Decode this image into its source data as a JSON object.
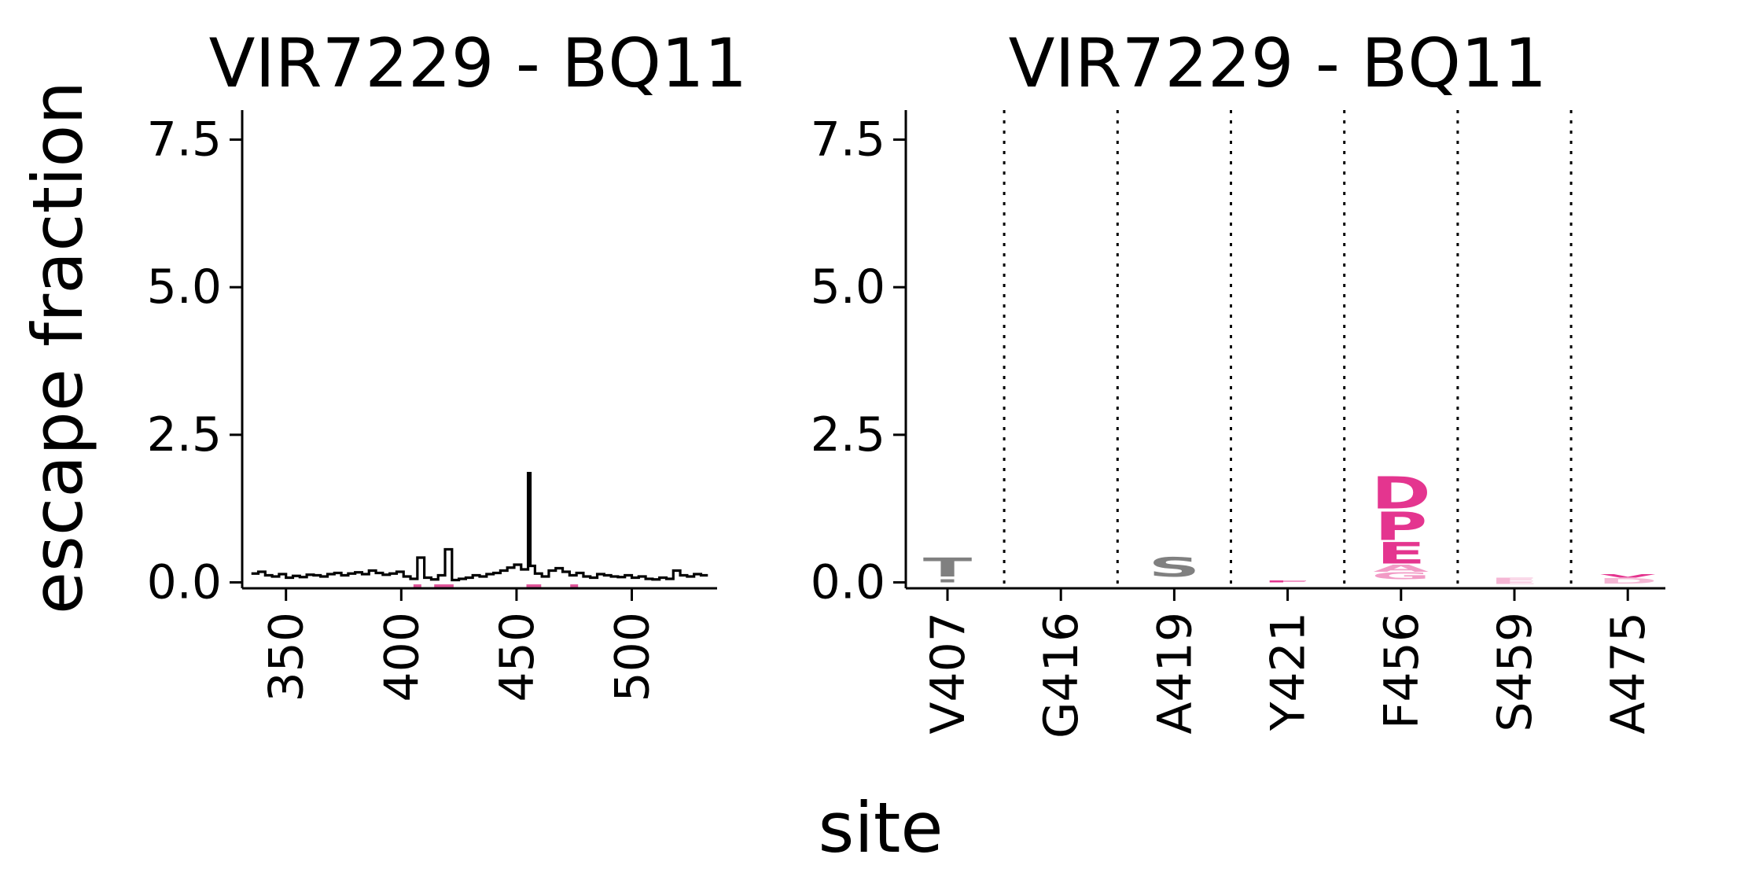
{
  "figure": {
    "ylabel": "escape fraction",
    "xlabel": "site"
  },
  "chart_data": [
    {
      "type": "line",
      "title": "VIR7229 - BQ11",
      "xlabel": "",
      "ylabel": "",
      "xlim": [
        331,
        537
      ],
      "ylim": [
        -0.1,
        8.0
      ],
      "xticks": [
        350,
        400,
        450,
        500
      ],
      "yticks": [
        0.0,
        2.5,
        5.0,
        7.5
      ],
      "ytick_labels": [
        "0.0",
        "2.5",
        "5.0",
        "7.5"
      ],
      "grid": false,
      "series": [
        {
          "type": "step",
          "color": "#000000",
          "x": [
            335,
            338,
            341,
            344,
            347,
            350,
            353,
            356,
            359,
            362,
            365,
            368,
            371,
            374,
            377,
            380,
            383,
            386,
            389,
            392,
            395,
            398,
            401,
            404,
            407,
            410,
            413,
            416,
            419,
            422,
            425,
            428,
            431,
            434,
            437,
            440,
            443,
            446,
            449,
            452,
            455,
            456,
            458,
            461,
            464,
            467,
            470,
            473,
            476,
            479,
            482,
            485,
            488,
            491,
            494,
            497,
            500,
            503,
            506,
            509,
            512,
            515,
            518,
            521,
            524,
            527,
            530
          ],
          "y": [
            0.15,
            0.18,
            0.12,
            0.1,
            0.14,
            0.08,
            0.11,
            0.09,
            0.13,
            0.12,
            0.1,
            0.14,
            0.16,
            0.12,
            0.15,
            0.17,
            0.14,
            0.2,
            0.16,
            0.13,
            0.15,
            0.18,
            0.1,
            0.06,
            0.42,
            0.08,
            0.05,
            0.12,
            0.56,
            0.04,
            0.06,
            0.08,
            0.12,
            0.1,
            0.14,
            0.16,
            0.2,
            0.25,
            0.3,
            0.22,
            1.85,
            0.28,
            0.15,
            0.1,
            0.2,
            0.24,
            0.18,
            0.12,
            0.16,
            0.1,
            0.08,
            0.14,
            0.12,
            0.1,
            0.09,
            0.12,
            0.08,
            0.1,
            0.06,
            0.05,
            0.08,
            0.06,
            0.2,
            0.12,
            0.1,
            0.14,
            0.12
          ]
        }
      ],
      "highlight_sites": {
        "color": "#e0559a",
        "x": [
          407,
          416,
          419,
          421,
          456,
          459,
          475
        ]
      }
    },
    {
      "type": "logo",
      "title": "VIR7229 - BQ11",
      "xlabel": "",
      "ylabel": "",
      "ylim": [
        -0.1,
        8.0
      ],
      "yticks": [
        0.0,
        2.5,
        5.0,
        7.5
      ],
      "ytick_labels": [
        "0.0",
        "2.5",
        "5.0",
        "7.5"
      ],
      "categories": [
        "V407",
        "G416",
        "A419",
        "Y421",
        "F456",
        "S459",
        "A475"
      ],
      "separators": "dotted",
      "letters": [
        {
          "site": "V407",
          "letter": "T",
          "bottom": 0.1,
          "height": 0.32,
          "color": "#808080"
        },
        {
          "site": "V407",
          "letter": "I",
          "bottom": 0.0,
          "height": 0.05,
          "color": "#808080"
        },
        {
          "site": "A419",
          "letter": "S",
          "bottom": 0.1,
          "height": 0.33,
          "color": "#808080"
        },
        {
          "site": "Y421",
          "letter": "F",
          "bottom": 0.0,
          "height": 0.03,
          "color": "#e4358f"
        },
        {
          "site": "F456",
          "letter": "D",
          "bottom": 1.25,
          "height": 0.55,
          "color": "#e4358f"
        },
        {
          "site": "F456",
          "letter": "P",
          "bottom": 0.72,
          "height": 0.48,
          "color": "#e4358f"
        },
        {
          "site": "F456",
          "letter": "E",
          "bottom": 0.32,
          "height": 0.36,
          "color": "#e4358f"
        },
        {
          "site": "F456",
          "letter": "A",
          "bottom": 0.18,
          "height": 0.12,
          "color": "#f29bc6"
        },
        {
          "site": "F456",
          "letter": "G",
          "bottom": 0.05,
          "height": 0.12,
          "color": "#f29bc6"
        },
        {
          "site": "S459",
          "letter": "F",
          "bottom": 0.02,
          "height": 0.06,
          "color": "#f5b6d4"
        },
        {
          "site": "S459",
          "letter": "E",
          "bottom": -0.03,
          "height": 0.05,
          "color": "#f5b6d4"
        },
        {
          "site": "A475",
          "letter": "V",
          "bottom": 0.08,
          "height": 0.06,
          "color": "#e4358f"
        },
        {
          "site": "A475",
          "letter": "D",
          "bottom": -0.02,
          "height": 0.09,
          "color": "#f5b6d4"
        }
      ]
    }
  ]
}
